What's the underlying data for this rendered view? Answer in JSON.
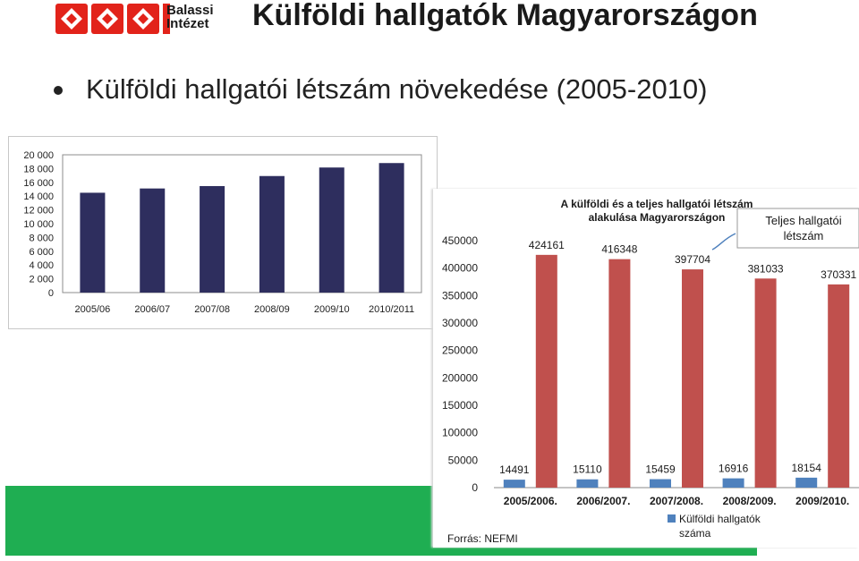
{
  "header": {
    "logo_line1": "Balassi",
    "logo_line2": "Intézet",
    "title": "Külföldi hallgatók Magyarországon"
  },
  "bullet_text": "Külföldi hallgatói létszám növekedése (2005-2010)",
  "colors": {
    "bar_small": "#2e2e5e",
    "bar_total": "#c0504d",
    "bar_foreign": "#4f81bd",
    "band": "#1fae52",
    "logo": "#e2231a"
  },
  "chart_data": [
    {
      "type": "bar",
      "title": "",
      "categories": [
        "2005/06",
        "2006/07",
        "2007/08",
        "2008/09",
        "2009/10",
        "2010/2011"
      ],
      "values": [
        14491,
        15110,
        15459,
        16916,
        18154,
        18800
      ],
      "ylim": [
        0,
        20000
      ],
      "yticks": [
        "20 000",
        "18 000",
        "16 000",
        "14 000",
        "12 000",
        "10 000",
        "8 000",
        "6 000",
        "4 000",
        "2 000",
        "0"
      ],
      "grid": false,
      "legend": "none"
    },
    {
      "type": "bar",
      "title_line1": "A külföldi és a teljes hallgatói létszám",
      "title_line2": "alakulása Magyarországon",
      "categories": [
        "2005/2006.",
        "2006/2007.",
        "2007/2008.",
        "2008/2009.",
        "2009/2010."
      ],
      "ylim": [
        0,
        450000
      ],
      "yticks": [
        "450000",
        "400000",
        "350000",
        "300000",
        "250000",
        "200000",
        "150000",
        "100000",
        "50000",
        "0"
      ],
      "series": [
        {
          "name": "Külföldi hallgatók száma",
          "name_line1": "Külföldi hallgatók",
          "name_line2": "száma",
          "values": [
            14491,
            15110,
            15459,
            16916,
            18154
          ],
          "labels": [
            "14491",
            "15110",
            "15459",
            "16916",
            "18154"
          ]
        },
        {
          "name": "Teljes hallgatói létszám",
          "values": [
            424161,
            416348,
            397704,
            381033,
            370331
          ],
          "labels": [
            "424161",
            "416348",
            "397704",
            "381033",
            "370331"
          ]
        }
      ],
      "callout_line1": "Teljes hallgatói",
      "callout_line2": "létszám",
      "source": "Forrás: NEFMI",
      "legend": "bottom"
    }
  ]
}
